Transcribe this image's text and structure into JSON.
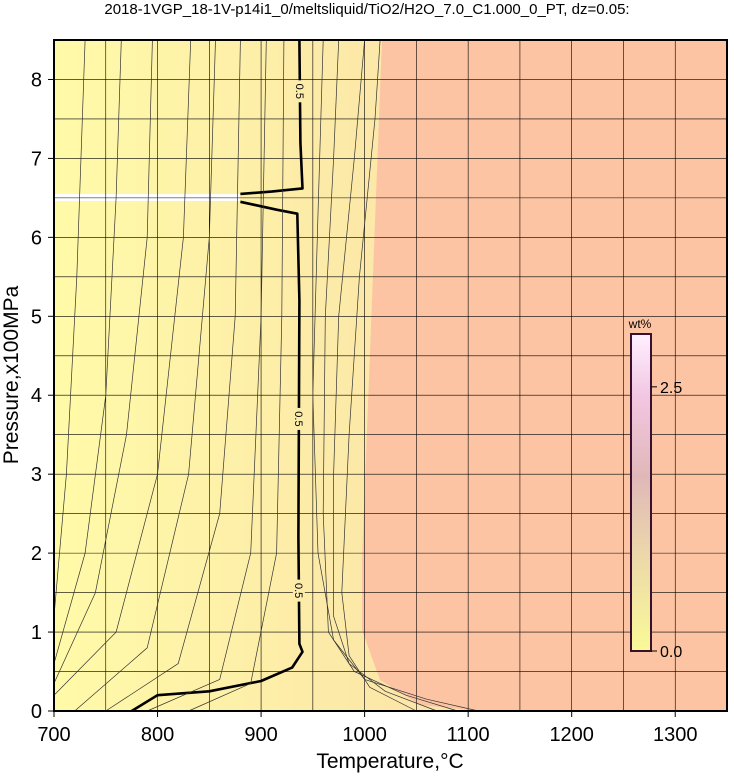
{
  "chart_data": {
    "type": "contour",
    "title": "2018-1VGP_18-1V-p14i1_0/meltsliquid/TiO2/H2O_7.0_C1.000_0_PT, dz=0.05:",
    "xlabel": "Temperature,°C",
    "ylabel": "Pressure,x100MPa",
    "xlim": [
      700,
      1350
    ],
    "ylim": [
      0,
      8.5
    ],
    "xticks": [
      700,
      800,
      900,
      1000,
      1100,
      1200,
      1300
    ],
    "yticks": [
      0,
      1,
      2,
      3,
      4,
      5,
      6,
      7,
      8
    ],
    "xgrid_minor": [
      750,
      850,
      950,
      1050,
      1150,
      1250
    ],
    "ygrid_minor": [
      0.5,
      1.5,
      2.5,
      3.5,
      4.5,
      5.5,
      6.5,
      7.5
    ],
    "grid": true,
    "contours": [
      {
        "level": 0.5,
        "style": "bold",
        "color": "#000000",
        "x": [
          775,
          800,
          850,
          900,
          930,
          940,
          937,
          936,
          937,
          935,
          915,
          880,
          null,
          880,
          910,
          940,
          938,
          937
        ],
        "y": [
          0,
          0.2,
          0.25,
          0.38,
          0.55,
          0.75,
          0.85,
          2.2,
          5.2,
          6.3,
          6.35,
          6.45,
          null,
          6.55,
          6.58,
          6.62,
          7.2,
          8.5
        ]
      },
      {
        "level": 0.1,
        "style": "thin",
        "color": "#333333",
        "x": [
          700,
          712,
          722,
          730
        ],
        "y": [
          1.2,
          3,
          5.5,
          8.5
        ]
      },
      {
        "level": 0.15,
        "style": "thin",
        "color": "#333333",
        "x": [
          700,
          730,
          750,
          760,
          765
        ],
        "y": [
          0.6,
          2,
          4,
          6.5,
          8.5
        ]
      },
      {
        "level": 0.2,
        "style": "thin",
        "color": "#333333",
        "x": [
          700,
          740,
          770,
          790,
          795
        ],
        "y": [
          0.35,
          1.5,
          3.5,
          6,
          8.5
        ]
      },
      {
        "level": 0.25,
        "style": "thin",
        "color": "#333333",
        "x": [
          700,
          760,
          800,
          825,
          832
        ],
        "y": [
          0.2,
          1,
          3,
          6,
          8.5
        ]
      },
      {
        "level": 0.3,
        "style": "thin",
        "color": "#333333",
        "x": [
          720,
          790,
          830,
          850,
          856
        ],
        "y": [
          0,
          0.8,
          3,
          6,
          8.5
        ]
      },
      {
        "level": 0.35,
        "style": "thin",
        "color": "#333333",
        "x": [
          750,
          820,
          860,
          875,
          880
        ],
        "y": [
          0,
          0.6,
          2.5,
          5,
          8.5
        ]
      },
      {
        "level": 0.4,
        "style": "thin",
        "color": "#333333",
        "x": [
          790,
          860,
          890,
          900,
          905
        ],
        "y": [
          0,
          0.4,
          2,
          5,
          8.5
        ]
      },
      {
        "level": 0.45,
        "style": "thin",
        "color": "#333333",
        "x": [
          830,
          890,
          915,
          920,
          922
        ],
        "y": [
          0,
          0.35,
          2,
          5,
          8.5
        ]
      },
      {
        "level": 0.55,
        "style": "thin",
        "color": "#333333",
        "x": [
          1110,
          1060,
          1000,
          970,
          955,
          950,
          955,
          960
        ],
        "y": [
          0,
          0.15,
          0.4,
          0.9,
          2,
          4,
          6.3,
          8.5
        ]
      },
      {
        "level": 0.6,
        "style": "thin",
        "color": "#333333",
        "x": [
          1090,
          1040,
          990,
          965,
          960,
          962,
          970,
          975
        ],
        "y": [
          0,
          0.2,
          0.5,
          1,
          2.5,
          5,
          7,
          8.5
        ]
      },
      {
        "level": 0.65,
        "style": "thin",
        "color": "#333333",
        "x": [
          1070,
          1020,
          985,
          970,
          970,
          975,
          990,
          1000
        ],
        "y": [
          0,
          0.25,
          0.6,
          1.2,
          3,
          5,
          7,
          8.5
        ]
      },
      {
        "level": 0.7,
        "style": "thin",
        "color": "#333333",
        "x": [
          1050,
          1005,
          985,
          978,
          985,
          995,
          1010,
          1015
        ],
        "y": [
          0,
          0.3,
          0.7,
          1.5,
          3.5,
          5.5,
          7.5,
          8.5
        ]
      }
    ],
    "colorbar": {
      "label": "wt%",
      "lim": [
        0,
        3.0
      ],
      "ticks": [
        {
          "value": 0,
          "label": "0.0"
        },
        2.5
      ]
    }
  }
}
